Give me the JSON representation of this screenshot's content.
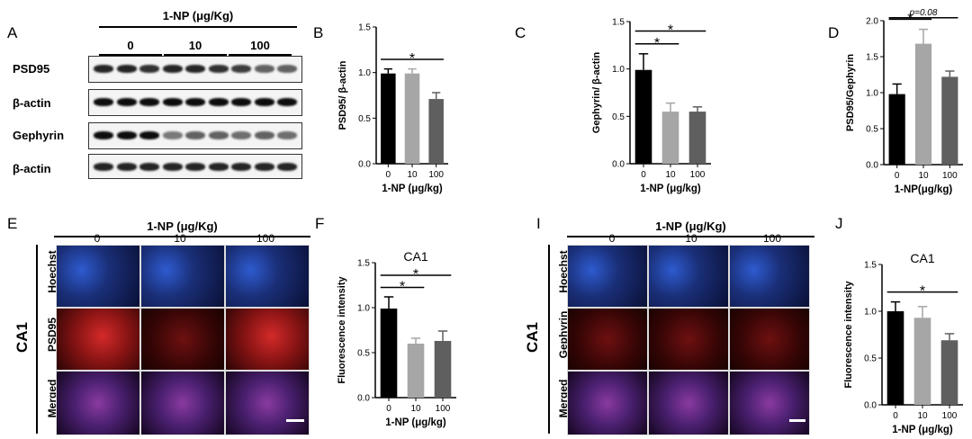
{
  "panels": {
    "A": {
      "letter": "A",
      "header": "1-NP (μg/Kg)",
      "groups": [
        "0",
        "10",
        "100"
      ],
      "rows": [
        "PSD95",
        "β-actin",
        "Gephyrin",
        "β-actin"
      ]
    },
    "E": {
      "letter": "E",
      "header": "1-NP (μg/Kg)",
      "groups": [
        "0",
        "10",
        "100"
      ],
      "region": "CA1",
      "rows": [
        "Hoechst",
        "PSD95",
        "Merged"
      ]
    },
    "I": {
      "letter": "I",
      "header": "1-NP (μg/Kg)",
      "groups": [
        "0",
        "10",
        "100"
      ],
      "region": "CA1",
      "rows": [
        "Hoechst",
        "Gephyrin",
        "Merged"
      ]
    }
  },
  "colors": {
    "bar0": "#000000",
    "bar10": "#a6a6a6",
    "bar100": "#5f5f5f",
    "hoechst": "#2b4fbf",
    "psd95": "#c81e1e"
  },
  "chart_data": [
    {
      "letter": "B",
      "type": "bar",
      "title": "",
      "categories": [
        "0",
        "10",
        "100"
      ],
      "values": [
        0.99,
        0.99,
        0.71
      ],
      "errors": [
        0.05,
        0.05,
        0.07
      ],
      "ylabel": "PSD95/ β-actin",
      "xlabel": "1-NP (μg/kg)",
      "ylim": [
        0,
        1.5
      ],
      "yticks": [
        "0.0",
        "0.5",
        "1.0",
        "1.5"
      ],
      "significance": [
        {
          "from": 0,
          "to": 2,
          "label": "*"
        }
      ],
      "note": ""
    },
    {
      "letter": "C",
      "type": "bar",
      "title": "",
      "categories": [
        "0",
        "10",
        "100"
      ],
      "values": [
        0.99,
        0.55,
        0.55
      ],
      "errors": [
        0.17,
        0.09,
        0.05
      ],
      "ylabel": "Gephyrin/ β-actin",
      "xlabel": "1-NP (μg/kg)",
      "ylim": [
        0,
        1.5
      ],
      "yticks": [
        "0.0",
        "0.5",
        "1.0",
        "1.5"
      ],
      "significance": [
        {
          "from": 0,
          "to": 1,
          "label": "*"
        },
        {
          "from": 0,
          "to": 2,
          "label": "*"
        }
      ],
      "note": ""
    },
    {
      "letter": "D",
      "type": "bar",
      "title": "",
      "categories": [
        "0",
        "10",
        "100"
      ],
      "values": [
        0.98,
        1.68,
        1.22
      ],
      "errors": [
        0.14,
        0.2,
        0.08
      ],
      "ylabel": "PSD95/Gephyrin",
      "xlabel": "1-NP(μg/kg)",
      "ylim": [
        0,
        2.0
      ],
      "yticks": [
        "0.0",
        "0.5",
        "1.0",
        "1.5",
        "2.0"
      ],
      "significance": [
        {
          "from": 0,
          "to": 1,
          "label": "*"
        },
        {
          "from": 0,
          "to": 2,
          "label": "p=0.08"
        }
      ],
      "note": ""
    },
    {
      "letter": "F",
      "type": "bar",
      "title": "CA1",
      "categories": [
        "0",
        "10",
        "100"
      ],
      "values": [
        0.99,
        0.6,
        0.63
      ],
      "errors": [
        0.13,
        0.06,
        0.11
      ],
      "ylabel": "Fluorescence intensity",
      "xlabel": "1-NP (μg/kg)",
      "ylim": [
        0,
        1.5
      ],
      "yticks": [
        "0.0",
        "0.5",
        "1.0",
        "1.5"
      ],
      "significance": [
        {
          "from": 0,
          "to": 1,
          "label": "*"
        },
        {
          "from": 0,
          "to": 2,
          "label": "*"
        }
      ],
      "note": ""
    },
    {
      "letter": "J",
      "type": "bar",
      "title": "CA1",
      "categories": [
        "0",
        "10",
        "100"
      ],
      "values": [
        1.0,
        0.93,
        0.69
      ],
      "errors": [
        0.1,
        0.12,
        0.07
      ],
      "ylabel": "Fluorescence intensity",
      "xlabel": "1-NP (μg/kg)",
      "ylim": [
        0,
        1.5
      ],
      "yticks": [
        "0.0",
        "0.5",
        "1.0",
        "1.5"
      ],
      "significance": [
        {
          "from": 0,
          "to": 2,
          "label": "*"
        }
      ],
      "note": ""
    }
  ]
}
